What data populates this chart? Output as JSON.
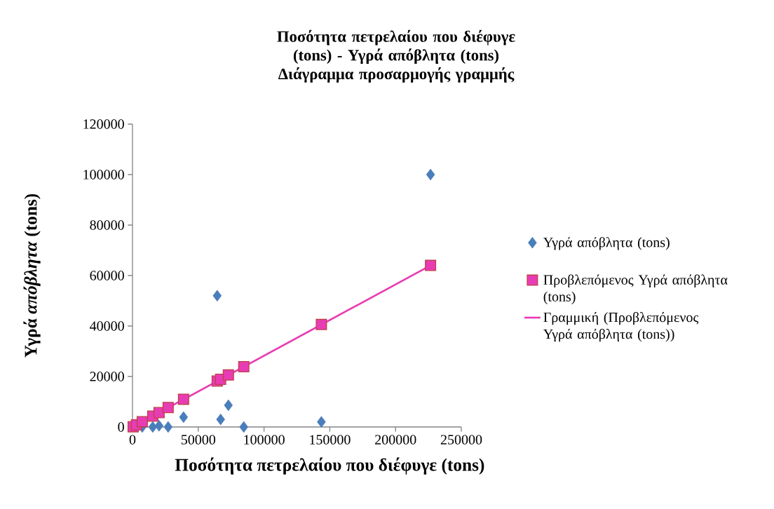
{
  "chart_data": {
    "type": "scatter",
    "title": "Ποσότητα πετρελαίου που διέφυγε (tons) - Υγρά απόβλητα (tons)",
    "subtitle": "Διάγραμμα προσαρμογής γραμμής",
    "xlabel": "Ποσότητα πετρελαίου που διέφυγε (tons)",
    "ylabel": "Υγρά *απόβλητα* (tons)",
    "x": [
      500,
      3000,
      7400,
      15400,
      20200,
      27100,
      38800,
      64400,
      67000,
      72900,
      84600,
      143600,
      226600
    ],
    "series": [
      {
        "name": "Υγρά απόβλητα (tons)",
        "marker": "diamond",
        "color": "#4a7ebb",
        "values": [
          null,
          null,
          0,
          0,
          500,
          0,
          3900,
          52000,
          3000,
          8600,
          0,
          2000,
          100000
        ]
      },
      {
        "name": "Προβλεπόμενος Υγρά απόβλητα (tons)",
        "type": "scatter",
        "marker": "square",
        "color": "#e83cb4",
        "values": [
          100,
          800,
          2100,
          4300,
          5700,
          7700,
          11000,
          18200,
          18900,
          20600,
          23900,
          40600,
          64000
        ]
      },
      {
        "name": "Γραμμική (Προβλεπόμενος Υγρά απόβλητα (tons))",
        "type": "line",
        "marker": "none",
        "color": "#e83cb4",
        "x": [
          500,
          226600
        ],
        "values": [
          100,
          64000
        ]
      }
    ],
    "xlim": [
      0,
      250000
    ],
    "xticks": [
      0,
      50000,
      100000,
      150000,
      200000,
      250000
    ],
    "ylim": [
      0,
      120000
    ],
    "yticks": [
      0,
      20000,
      40000,
      60000,
      80000,
      100000,
      120000
    ],
    "grid": false,
    "legend": "right"
  }
}
